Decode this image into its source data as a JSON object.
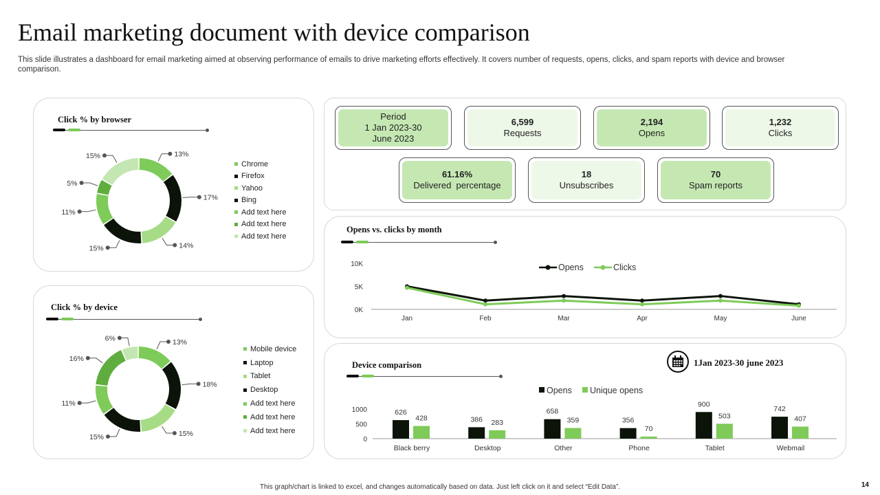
{
  "page": {
    "title": "Email marketing document with device comparison",
    "subtitle": "This slide illustrates a dashboard for email marketing aimed at observing performance of emails to drive marketing efforts effectively. It covers number of requests, opens, clicks, and spam reports with device and browser comparison.",
    "footer": "This graph/chart is linked to excel, and changes automatically based on data. Just left click on it and select “Edit Data”.",
    "page_number": "14"
  },
  "kpis": {
    "period": {
      "line1": "Period",
      "line2": "1 Jan 2023-30",
      "line3": "June 2023"
    },
    "requests": {
      "value": "6,599",
      "label": "Requests"
    },
    "opens": {
      "value": "2,194",
      "label": "Opens"
    },
    "clicks": {
      "value": "1,232",
      "label": "Clicks"
    },
    "delivered": {
      "value": "61.16%",
      "label": "Delivered  percentage"
    },
    "unsubscribes": {
      "value": "18",
      "label": "Unsubscribes"
    },
    "spam": {
      "value": "70",
      "label": "Spam reports"
    }
  },
  "device_comparison_date": "1Jan 2023-30 june 2023",
  "colors": {
    "black": "#0c140a",
    "green": "#7ecb5a",
    "light_green": "#c4e6b2",
    "mid_green": "#5fad3f",
    "panel_border": "#d7d7d7"
  },
  "chart_data": [
    {
      "type": "pie",
      "title": "Click % by browser",
      "labels": [
        "Chrome",
        "Firefox",
        "Yahoo",
        "Bing",
        "Add text here",
        "Add text here",
        "Add text here"
      ],
      "values": [
        13,
        17,
        14,
        15,
        11,
        5,
        15
      ],
      "value_labels": [
        "13%",
        "17%",
        "14%",
        "15%",
        "11%",
        "5%",
        "15%"
      ],
      "colors": [
        "#7ecb5a",
        "#0c140a",
        "#a6dc86",
        "#0c140a",
        "#7ecb5a",
        "#5fad3f",
        "#c4e6b2"
      ],
      "donut": true,
      "legend": "right"
    },
    {
      "type": "pie",
      "title": "Click % by device",
      "labels": [
        "Mobile device",
        "Laptop",
        "Tablet",
        "Desktop",
        "Add text here",
        "Add text here",
        "Add text here"
      ],
      "values": [
        13,
        18,
        15,
        15,
        11,
        16,
        6
      ],
      "value_labels": [
        "13%",
        "18%",
        "15%",
        "15%",
        "11%",
        "16%",
        "6%"
      ],
      "colors": [
        "#7ecb5a",
        "#0c140a",
        "#a6dc86",
        "#0c140a",
        "#7ecb5a",
        "#5fad3f",
        "#c4e6b2"
      ],
      "donut": true,
      "legend": "right"
    },
    {
      "type": "line",
      "title": "Opens vs. clicks by month",
      "categories": [
        "Jan",
        "Feb",
        "Mar",
        "Apr",
        "May",
        "June"
      ],
      "series": [
        {
          "name": "Opens",
          "values": [
            5000,
            1900,
            2900,
            1900,
            2900,
            1100
          ],
          "color": "#0c140a"
        },
        {
          "name": "Clicks",
          "values": [
            4700,
            1100,
            1900,
            1100,
            1900,
            800
          ],
          "color": "#7ecb5a"
        }
      ],
      "yticks": [
        "0K",
        "5K",
        "10K"
      ],
      "ylim": [
        0,
        10000
      ],
      "legend": "top"
    },
    {
      "type": "bar",
      "title": "Device comparison",
      "categories": [
        "Black berry",
        "Desktop",
        "Other",
        "Phone",
        "Tablet",
        "Webmail"
      ],
      "series": [
        {
          "name": "Opens",
          "values": [
            626,
            386,
            658,
            356,
            900,
            742
          ],
          "color": "#0c140a"
        },
        {
          "name": "Unique opens",
          "values": [
            428,
            283,
            359,
            70,
            503,
            407
          ],
          "color": "#7ecb5a"
        }
      ],
      "yticks": [
        "0",
        "500",
        "1000"
      ],
      "ylim": [
        0,
        1000
      ],
      "legend": "top"
    }
  ]
}
